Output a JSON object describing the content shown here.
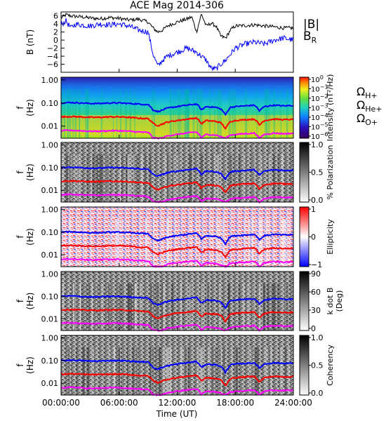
{
  "title": "ACE Mag 2014-306",
  "colors": {
    "total_field": "#000000",
    "radial_field": "#0000ff",
    "h_cyclotron": "#0000ff",
    "he_cyclotron": "#ff0000",
    "o_cyclotron": "#ff00ff",
    "polarization_line": "#0000cc",
    "polarization_red": "#ff1010"
  },
  "time_axis": {
    "label": "Time (UT)",
    "ticks": [
      "00:00:00",
      "06:00:00",
      "12:00:00",
      "18:00:00",
      "24:00:00"
    ],
    "range_hours": [
      0,
      24
    ]
  },
  "panels": [
    {
      "id": "field",
      "ylabel": [
        "B",
        "(nT)"
      ],
      "yticks": [
        "6",
        "4",
        "2",
        "0",
        "−2",
        "−4",
        "−6"
      ],
      "legend": [
        {
          "label": "|B|",
          "color": "#000000"
        },
        {
          "label": "B",
          "sub": "R",
          "color": "#0000ff"
        }
      ]
    },
    {
      "id": "intensity",
      "ylabel": [
        "f",
        "(Hz)"
      ],
      "yticks": [
        "1.00",
        "0.10",
        "0.01"
      ],
      "colorbar": {
        "label": "Intensity (nT²/Hz)",
        "ticks": [
          {
            "base": "10",
            "exp": "0"
          },
          {
            "base": "10",
            "exp": "−1"
          },
          {
            "base": "10",
            "exp": "−2"
          },
          {
            "base": "10",
            "exp": "−3"
          },
          {
            "base": "10",
            "exp": "−4"
          },
          {
            "base": "10",
            "exp": "−5"
          },
          {
            "base": "10",
            "exp": "−6"
          }
        ]
      },
      "legend": [
        {
          "label": "Ω",
          "sub": "H+",
          "color": "#0000ff"
        },
        {
          "label": "Ω",
          "sub": "He+",
          "color": "#ff0000"
        },
        {
          "label": "Ω",
          "sub": "O+",
          "color": "#ff00ff"
        }
      ]
    },
    {
      "id": "polarization",
      "ylabel": [
        "f",
        "(Hz)"
      ],
      "yticks": [
        "1.00",
        "0.10",
        "0.01"
      ],
      "colorbar": {
        "label": "% Polarization",
        "ticks": [
          "1.0",
          "0.5",
          "0.0"
        ]
      }
    },
    {
      "id": "ellipticity",
      "ylabel": [
        "f",
        "(Hz)"
      ],
      "yticks": [
        "1.00",
        "0.10",
        "0.01"
      ],
      "colorbar": {
        "label": "Ellipticity",
        "ticks": [
          "1",
          "0",
          "−1"
        ]
      }
    },
    {
      "id": "kdotb",
      "ylabel": [
        "f",
        "(Hz)"
      ],
      "yticks": [
        "1.00",
        "0.10",
        "0.01"
      ],
      "colorbar": {
        "label": "k dot B (Deg)",
        "label_lines": [
          "k dot B",
          "(Deg)"
        ],
        "ticks": [
          "90",
          "60",
          "30",
          "0"
        ]
      }
    },
    {
      "id": "coherency",
      "ylabel": [
        "f",
        "(Hz)"
      ],
      "yticks": [
        "1.00",
        "0.10",
        "0.01"
      ],
      "colorbar": {
        "label": "Coherency",
        "ticks": [
          "1.0",
          "0.5",
          "0.0"
        ]
      }
    }
  ],
  "chart_data": {
    "type": "line",
    "title": "ACE Mag 2014-306",
    "xlabel": "Time (UT)",
    "xlim": [
      0,
      24
    ],
    "x_unit": "hours",
    "field_panel": {
      "ylabel": "B (nT)",
      "ylim": [
        -7,
        8
      ],
      "series": [
        {
          "name": "|B|",
          "x": [
            0,
            0.5,
            1,
            2,
            3,
            4,
            5,
            6,
            7,
            8,
            9,
            9.5,
            10,
            10.5,
            11,
            12,
            13,
            13.5,
            14,
            14.5,
            15,
            15.5,
            16,
            16.5,
            17,
            17.5,
            18,
            19,
            20,
            21,
            22,
            23,
            24
          ],
          "y": [
            6.5,
            7.3,
            7.0,
            6.8,
            6.5,
            6.3,
            6.6,
            6.4,
            6.0,
            6.2,
            5.5,
            4.0,
            3.0,
            3.5,
            4.5,
            5.5,
            6.2,
            6.8,
            3.0,
            7.5,
            4.5,
            5.2,
            4.5,
            2.0,
            1.5,
            3.5,
            4.5,
            4.6,
            4.8,
            4.5,
            4.3,
            4.0,
            4.0
          ]
        },
        {
          "name": "B_R",
          "x": [
            0,
            0.5,
            1,
            1.5,
            2,
            3,
            4,
            5,
            6,
            7,
            8,
            9,
            9.5,
            10,
            10.5,
            11,
            12,
            13,
            14,
            15,
            15.5,
            16,
            16.5,
            17,
            18,
            19,
            20,
            21,
            22,
            23,
            24
          ],
          "y": [
            4.8,
            5.8,
            4.0,
            5.0,
            4.8,
            4.5,
            5.0,
            4.8,
            5.0,
            4.5,
            3.5,
            3.0,
            -2.5,
            -5.5,
            -4.0,
            -3.0,
            -2.0,
            -1.0,
            -2.0,
            -4.0,
            -6.0,
            -6.2,
            -5.0,
            -4.0,
            -1.0,
            0.0,
            0.5,
            0.0,
            1.0,
            1.5,
            1.0
          ]
        }
      ]
    },
    "frequency_axis": {
      "label": "f (Hz)",
      "scale": "log",
      "ylim": [
        0.003,
        1.3
      ]
    },
    "cyclotron_frequencies": {
      "x": [
        0,
        1,
        2,
        3,
        4,
        5,
        6,
        7,
        8,
        9,
        9.5,
        10,
        10.5,
        11,
        12,
        13,
        14,
        14.5,
        15,
        16,
        16.5,
        17,
        17.5,
        18,
        19,
        20,
        20.5,
        21,
        22,
        23,
        24
      ],
      "series": [
        {
          "name": "ΩH+",
          "y": [
            0.1,
            0.105,
            0.1,
            0.095,
            0.095,
            0.1,
            0.1,
            0.095,
            0.09,
            0.085,
            0.05,
            0.042,
            0.05,
            0.06,
            0.07,
            0.08,
            0.09,
            0.05,
            0.07,
            0.065,
            0.055,
            0.03,
            0.065,
            0.07,
            0.075,
            0.08,
            0.045,
            0.07,
            0.08,
            0.075,
            0.078
          ]
        },
        {
          "name": "ΩHe+",
          "y": [
            0.025,
            0.026,
            0.025,
            0.024,
            0.024,
            0.025,
            0.025,
            0.024,
            0.022,
            0.021,
            0.013,
            0.0105,
            0.0125,
            0.015,
            0.0175,
            0.02,
            0.0225,
            0.0125,
            0.0175,
            0.016,
            0.014,
            0.0075,
            0.016,
            0.0175,
            0.019,
            0.02,
            0.011,
            0.0175,
            0.02,
            0.019,
            0.0195
          ]
        },
        {
          "name": "ΩO+",
          "y": [
            0.0063,
            0.0066,
            0.0063,
            0.006,
            0.006,
            0.0063,
            0.0063,
            0.006,
            0.0056,
            0.0053,
            0.0031,
            0.003,
            0.0031,
            0.0038,
            0.0044,
            0.005,
            0.0056,
            0.0031,
            0.0044,
            0.0041,
            0.0035,
            0.003,
            0.0041,
            0.0044,
            0.0047,
            0.005,
            0.003,
            0.0044,
            0.005,
            0.0047,
            0.0049
          ]
        }
      ]
    },
    "spectrograms": [
      {
        "name": "Intensity",
        "unit": "nT²/Hz",
        "scale": "log",
        "range": [
          1e-06,
          1
        ]
      },
      {
        "name": "% Polarization",
        "range": [
          0,
          1
        ]
      },
      {
        "name": "Ellipticity",
        "range": [
          -1,
          1
        ]
      },
      {
        "name": "k dot B",
        "unit": "Deg",
        "range": [
          0,
          90
        ]
      },
      {
        "name": "Coherency",
        "range": [
          0,
          1
        ]
      }
    ]
  }
}
